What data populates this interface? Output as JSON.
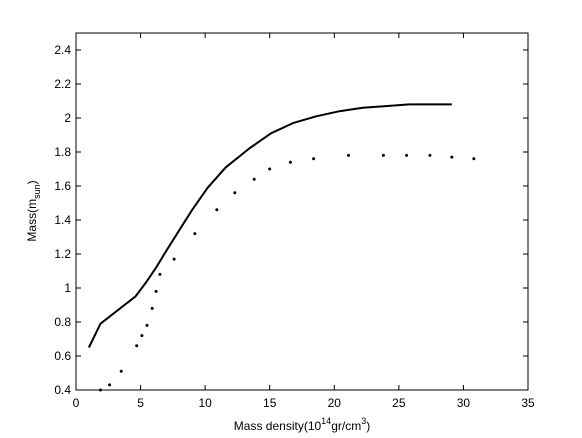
{
  "chart_data": {
    "type": "line",
    "xlabel": "Mass density(10¹⁴gr/cm³)",
    "xlabel_parts": {
      "pre": "Mass density(10",
      "sup1": "14",
      "mid": "gr/cm",
      "sup2": "3",
      "post": ")"
    },
    "ylabel": "Mass(m_sun)",
    "ylabel_parts": {
      "pre": "Mass(m",
      "sub": "sun",
      "post": ")"
    },
    "xlim": [
      0,
      35
    ],
    "ylim": [
      0.4,
      2.5
    ],
    "xticks": [
      0,
      5,
      10,
      15,
      20,
      25,
      30,
      35
    ],
    "xtick_labels": [
      "0",
      "5",
      "10",
      "15",
      "20",
      "25",
      "30",
      "35"
    ],
    "yticks": [
      0.4,
      0.6,
      0.8,
      1.0,
      1.2,
      1.4,
      1.6,
      1.8,
      2.0,
      2.2,
      2.4
    ],
    "ytick_labels": [
      "0.4",
      "0.6",
      "0.8",
      "1",
      "1.2",
      "1.4",
      "1.6",
      "1.8",
      "2",
      "2.2",
      "2.4"
    ],
    "grid": false,
    "series": [
      {
        "style": "solid",
        "color": "#000000",
        "x": [
          1.0,
          1.9,
          4.6,
          5.4,
          6.2,
          7.0,
          8.0,
          9.0,
          10.2,
          11.6,
          13.4,
          15.1,
          16.8,
          18.6,
          20.4,
          22.2,
          24.0,
          25.8,
          27.6,
          29.1
        ],
        "y": [
          0.65,
          0.79,
          0.95,
          1.03,
          1.12,
          1.22,
          1.34,
          1.46,
          1.59,
          1.71,
          1.82,
          1.91,
          1.97,
          2.01,
          2.04,
          2.06,
          2.07,
          2.08,
          2.08,
          2.08
        ]
      },
      {
        "style": "dotted",
        "color": "#000000",
        "x": [
          1.9,
          2.6,
          3.5,
          4.7,
          5.1,
          5.5,
          5.9,
          6.2,
          6.5,
          7.6,
          9.2,
          10.9,
          12.3,
          13.8,
          15.0,
          16.6,
          18.4,
          21.1,
          23.8,
          25.6,
          27.4,
          29.1,
          30.8
        ],
        "y": [
          0.4,
          0.43,
          0.51,
          0.66,
          0.72,
          0.78,
          0.88,
          0.98,
          1.08,
          1.17,
          1.32,
          1.46,
          1.56,
          1.64,
          1.7,
          1.74,
          1.76,
          1.78,
          1.78,
          1.78,
          1.78,
          1.77,
          1.76
        ]
      }
    ]
  }
}
